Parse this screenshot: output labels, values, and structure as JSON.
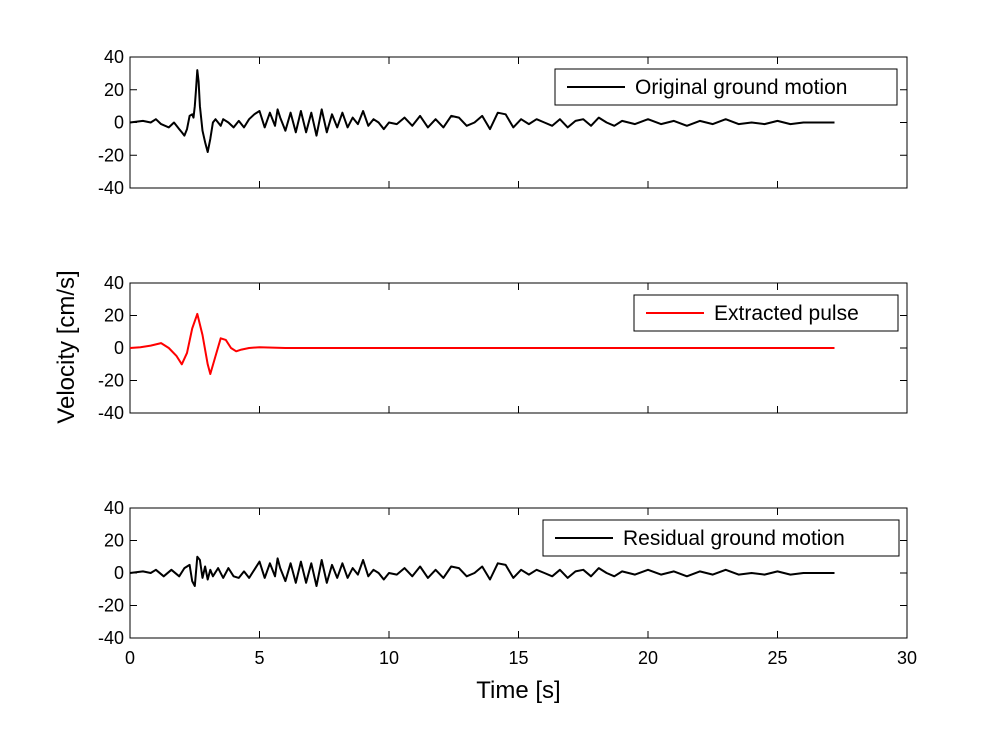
{
  "chart_data": [
    {
      "type": "line",
      "xlim": [
        0,
        30
      ],
      "ylim": [
        -40,
        40
      ],
      "xticks": [
        0,
        5,
        10,
        15,
        20,
        25,
        30
      ],
      "yticks": [
        40,
        20,
        0,
        -20,
        -40
      ],
      "show_xtick_labels": false,
      "grid": false,
      "legend_position": "top-right",
      "series": [
        {
          "name": "Original ground motion",
          "color": "#000000",
          "x": [
            0,
            0.5,
            0.8,
            1.0,
            1.2,
            1.5,
            1.7,
            1.9,
            2.0,
            2.1,
            2.2,
            2.3,
            2.4,
            2.45,
            2.5,
            2.55,
            2.6,
            2.65,
            2.7,
            2.8,
            2.9,
            3.0,
            3.1,
            3.2,
            3.3,
            3.5,
            3.6,
            3.8,
            4.0,
            4.2,
            4.4,
            4.6,
            4.8,
            5.0,
            5.2,
            5.4,
            5.6,
            5.7,
            5.8,
            6.0,
            6.2,
            6.4,
            6.6,
            6.8,
            7.0,
            7.2,
            7.4,
            7.6,
            7.8,
            8.0,
            8.2,
            8.4,
            8.6,
            8.8,
            9.0,
            9.2,
            9.4,
            9.6,
            9.8,
            10.0,
            10.3,
            10.6,
            10.9,
            11.2,
            11.5,
            11.8,
            12.1,
            12.4,
            12.7,
            13.0,
            13.3,
            13.6,
            13.9,
            14.2,
            14.5,
            14.8,
            15.1,
            15.4,
            15.7,
            16.0,
            16.3,
            16.6,
            16.9,
            17.2,
            17.5,
            17.8,
            18.1,
            18.4,
            18.7,
            19.0,
            19.5,
            20.0,
            20.5,
            21.0,
            21.5,
            22.0,
            22.5,
            23.0,
            23.5,
            24.0,
            24.5,
            25.0,
            25.5,
            26.0,
            26.5,
            27.2
          ],
          "y": [
            0,
            1,
            0,
            2,
            -1,
            -3,
            0,
            -4,
            -6,
            -8,
            -4,
            4,
            5,
            3,
            10,
            20,
            32,
            25,
            10,
            -5,
            -12,
            -18,
            -10,
            0,
            2,
            -2,
            2,
            0,
            -3,
            1,
            -3,
            2,
            5,
            7,
            -3,
            6,
            -2,
            8,
            3,
            -5,
            6,
            -6,
            7,
            -6,
            6,
            -8,
            8,
            -6,
            5,
            -3,
            6,
            -3,
            3,
            -1,
            7,
            -2,
            2,
            0,
            -4,
            0,
            -1,
            3,
            -2,
            4,
            -3,
            2,
            -3,
            4,
            3,
            -2,
            0,
            4,
            -4,
            6,
            5,
            -3,
            2,
            -1,
            2,
            0,
            -2,
            2,
            -3,
            1,
            2,
            -2,
            3,
            0,
            -2,
            1,
            -1,
            2,
            -1,
            1,
            -2,
            1,
            -1,
            2,
            -1,
            0,
            -1,
            1,
            -1,
            0,
            0,
            0
          ]
        }
      ]
    },
    {
      "type": "line",
      "xlim": [
        0,
        30
      ],
      "ylim": [
        -40,
        40
      ],
      "xticks": [
        0,
        5,
        10,
        15,
        20,
        25,
        30
      ],
      "yticks": [
        40,
        20,
        0,
        -20,
        -40
      ],
      "show_xtick_labels": false,
      "grid": false,
      "legend_position": "top-right",
      "series": [
        {
          "name": "Extracted pulse",
          "color": "#ff0000",
          "x": [
            0,
            0.4,
            0.8,
            1.2,
            1.5,
            1.8,
            2.0,
            2.2,
            2.4,
            2.6,
            2.8,
            3.0,
            3.1,
            3.3,
            3.5,
            3.7,
            3.9,
            4.1,
            4.3,
            4.6,
            5.0,
            6.0,
            27.2
          ],
          "y": [
            0,
            0.5,
            1.5,
            3,
            0,
            -5,
            -10,
            -3,
            12,
            21,
            8,
            -10,
            -16,
            -5,
            6,
            5,
            0,
            -2,
            -1,
            0,
            0.5,
            0,
            0
          ]
        }
      ]
    },
    {
      "type": "line",
      "xlim": [
        0,
        30
      ],
      "ylim": [
        -40,
        40
      ],
      "xticks": [
        0,
        5,
        10,
        15,
        20,
        25,
        30
      ],
      "yticks": [
        40,
        20,
        0,
        -20,
        -40
      ],
      "show_xtick_labels": true,
      "xlabel": "Time [s]",
      "grid": false,
      "legend_position": "top-right",
      "series": [
        {
          "name": "Residual ground motion",
          "color": "#000000",
          "x": [
            0,
            0.5,
            0.8,
            1.0,
            1.3,
            1.6,
            1.9,
            2.1,
            2.3,
            2.4,
            2.5,
            2.6,
            2.7,
            2.8,
            2.9,
            3.0,
            3.1,
            3.2,
            3.4,
            3.6,
            3.8,
            4.0,
            4.2,
            4.4,
            4.6,
            4.8,
            5.0,
            5.2,
            5.4,
            5.6,
            5.7,
            5.8,
            6.0,
            6.2,
            6.4,
            6.6,
            6.8,
            7.0,
            7.2,
            7.4,
            7.6,
            7.8,
            8.0,
            8.2,
            8.4,
            8.6,
            8.8,
            9.0,
            9.2,
            9.4,
            9.6,
            9.8,
            10.0,
            10.3,
            10.6,
            10.9,
            11.2,
            11.5,
            11.8,
            12.1,
            12.4,
            12.7,
            13.0,
            13.3,
            13.6,
            13.9,
            14.2,
            14.5,
            14.8,
            15.1,
            15.4,
            15.7,
            16.0,
            16.3,
            16.6,
            16.9,
            17.2,
            17.5,
            17.8,
            18.1,
            18.4,
            18.7,
            19.0,
            19.5,
            20.0,
            20.5,
            21.0,
            21.5,
            22.0,
            22.5,
            23.0,
            23.5,
            24.0,
            24.5,
            25.0,
            25.5,
            26.0,
            26.5,
            27.2
          ],
          "y": [
            0,
            1,
            0,
            2,
            -2,
            2,
            -2,
            3,
            5,
            -5,
            -8,
            10,
            8,
            -3,
            4,
            -4,
            2,
            -2,
            3,
            -3,
            3,
            -2,
            -3,
            1,
            -3,
            2,
            7,
            -3,
            6,
            -2,
            9,
            3,
            -5,
            6,
            -6,
            7,
            -6,
            6,
            -8,
            8,
            -6,
            5,
            -3,
            6,
            -3,
            3,
            -1,
            8,
            -2,
            2,
            0,
            -4,
            0,
            -1,
            3,
            -2,
            4,
            -3,
            2,
            -3,
            4,
            3,
            -2,
            0,
            4,
            -4,
            6,
            5,
            -3,
            2,
            -1,
            2,
            0,
            -2,
            2,
            -3,
            1,
            2,
            -2,
            3,
            0,
            -2,
            1,
            -1,
            2,
            -1,
            1,
            -2,
            1,
            -1,
            2,
            -1,
            0,
            -1,
            1,
            -1,
            0,
            0,
            0
          ]
        }
      ]
    }
  ],
  "ylabel": "Velocity [cm/s]"
}
